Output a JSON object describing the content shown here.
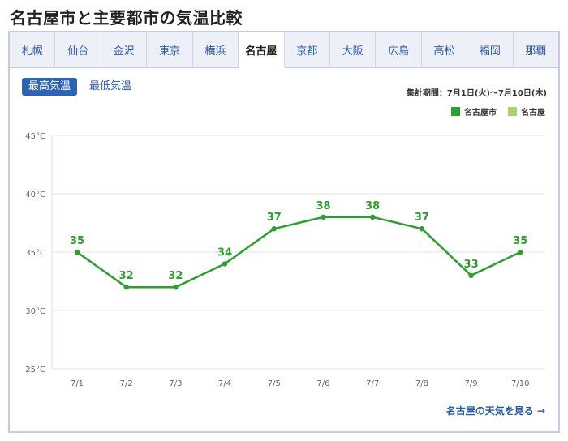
{
  "page": {
    "title": "名古屋市と主要都市の気温比較"
  },
  "tabs": [
    {
      "label": "札幌"
    },
    {
      "label": "仙台"
    },
    {
      "label": "金沢"
    },
    {
      "label": "東京"
    },
    {
      "label": "横浜"
    },
    {
      "label": "名古屋",
      "active": true
    },
    {
      "label": "京都"
    },
    {
      "label": "大阪"
    },
    {
      "label": "広島"
    },
    {
      "label": "高松"
    },
    {
      "label": "福岡"
    },
    {
      "label": "那覇"
    }
  ],
  "toggle": {
    "active_label": "最高気温",
    "inactive_label": "最低気温"
  },
  "period_text": "集計期間：7月1日(火)〜7月10日(木)",
  "legend": [
    {
      "label": "名古屋市",
      "color": "#2e9e2e"
    },
    {
      "label": "名古屋",
      "color": "#a8d26b"
    }
  ],
  "footer_link": "名古屋の天気を見る →",
  "colors": {
    "line": "#2e9e2e",
    "accent": "#2e62b6"
  },
  "chart_data": {
    "type": "line",
    "categories": [
      "7/1",
      "7/2",
      "7/3",
      "7/4",
      "7/5",
      "7/6",
      "7/7",
      "7/8",
      "7/9",
      "7/10"
    ],
    "series": [
      {
        "name": "名古屋市",
        "values": [
          35,
          32,
          32,
          34,
          37,
          38,
          38,
          37,
          33,
          35
        ]
      }
    ],
    "ylim": [
      25,
      45
    ],
    "yticks": [
      25,
      30,
      35,
      40,
      45
    ],
    "ytick_labels": [
      "25°C",
      "30°C",
      "35°C",
      "40°C",
      "45°C"
    ],
    "grid": true
  }
}
